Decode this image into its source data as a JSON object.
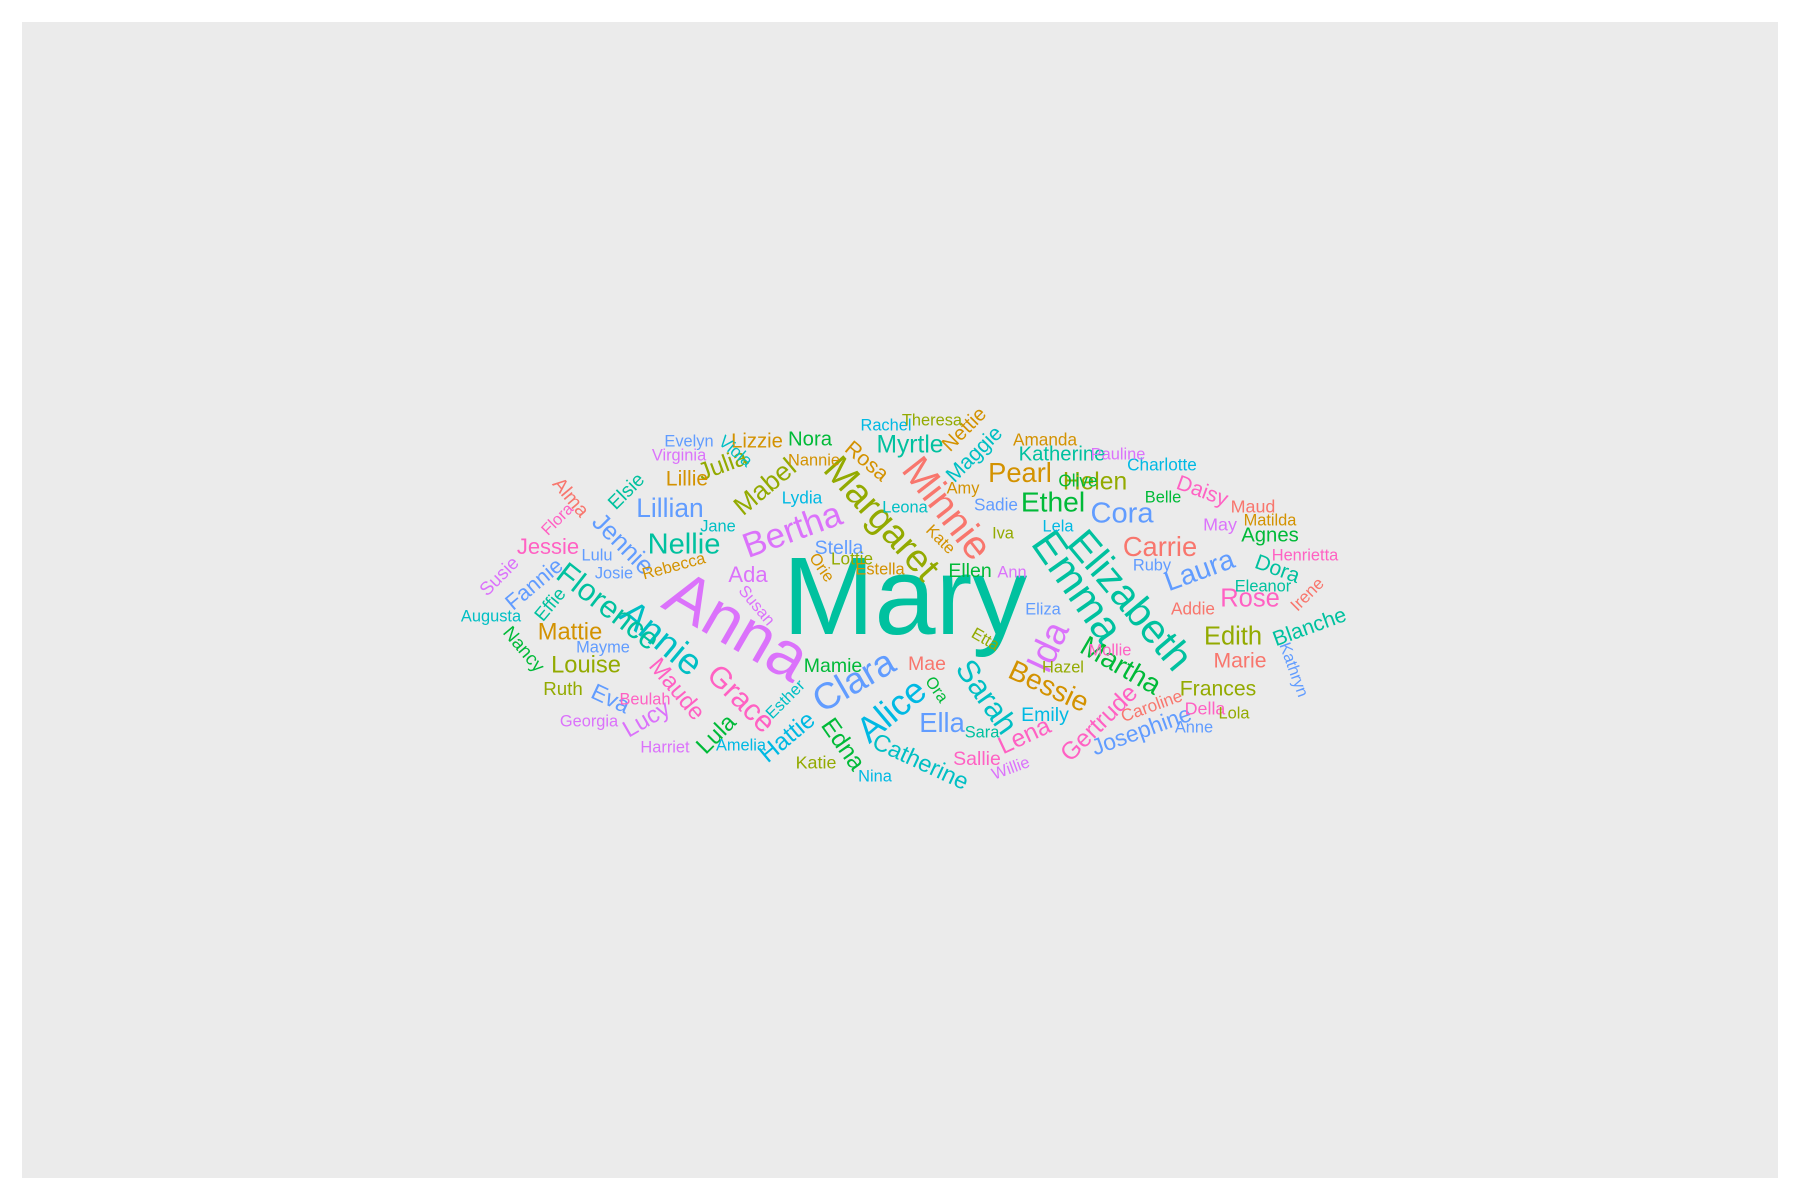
{
  "chart_data": {
    "type": "wordcloud",
    "palette": [
      "#F8766D",
      "#D39200",
      "#93AA00",
      "#00BA38",
      "#00C19F",
      "#00B9E3",
      "#619CFF",
      "#DB72FB",
      "#FF61C3"
    ],
    "words": [
      {
        "text": "Mary",
        "weight": 100,
        "color": "#00C19F",
        "angle": 0
      },
      {
        "text": "Anna",
        "weight": 66,
        "color": "#DB72FB",
        "angle": 30
      },
      {
        "text": "Emma",
        "weight": 46,
        "color": "#00C19F",
        "angle": 55
      },
      {
        "text": "Elizabeth",
        "weight": 44,
        "color": "#00C19F",
        "angle": 50
      },
      {
        "text": "Minnie",
        "weight": 43,
        "color": "#F8766D",
        "angle": 52
      },
      {
        "text": "Margaret",
        "weight": 41,
        "color": "#93AA00",
        "angle": 48
      },
      {
        "text": "Ida",
        "weight": 40,
        "color": "#DB72FB",
        "angle": -65
      },
      {
        "text": "Annie",
        "weight": 40,
        "color": "#00BFC4",
        "angle": 40
      },
      {
        "text": "Clara",
        "weight": 40,
        "color": "#619CFF",
        "angle": -30
      },
      {
        "text": "Alice",
        "weight": 39,
        "color": "#00B9E3",
        "angle": -40
      },
      {
        "text": "Bertha",
        "weight": 38,
        "color": "#DB72FB",
        "angle": -20
      },
      {
        "text": "Sarah",
        "weight": 34,
        "color": "#00BFC4",
        "angle": 55
      },
      {
        "text": "Florence",
        "weight": 34,
        "color": "#00C19F",
        "angle": 38
      },
      {
        "text": "Grace",
        "weight": 33,
        "color": "#FF61C3",
        "angle": 45
      },
      {
        "text": "Nellie",
        "weight": 32,
        "color": "#00C19F",
        "angle": 0
      },
      {
        "text": "Cora",
        "weight": 32,
        "color": "#619CFF",
        "angle": 0
      },
      {
        "text": "Martha",
        "weight": 31,
        "color": "#00BA38",
        "angle": 30
      },
      {
        "text": "Bessie",
        "weight": 31,
        "color": "#D39200",
        "angle": 25
      },
      {
        "text": "Laura",
        "weight": 31,
        "color": "#619CFF",
        "angle": -20
      },
      {
        "text": "Ethel",
        "weight": 31,
        "color": "#00BA38",
        "angle": 0
      },
      {
        "text": "Carrie",
        "weight": 30,
        "color": "#F8766D",
        "angle": 0
      },
      {
        "text": "Ella",
        "weight": 30,
        "color": "#619CFF",
        "angle": 0
      },
      {
        "text": "Pearl",
        "weight": 30,
        "color": "#D39200",
        "angle": 0
      },
      {
        "text": "Lillian",
        "weight": 29,
        "color": "#619CFF",
        "angle": 0
      },
      {
        "text": "Mabel",
        "weight": 29,
        "color": "#93AA00",
        "angle": -40
      },
      {
        "text": "Jennie",
        "weight": 28,
        "color": "#619CFF",
        "angle": 45
      },
      {
        "text": "Edith",
        "weight": 28,
        "color": "#93AA00",
        "angle": 0
      },
      {
        "text": "Rose",
        "weight": 28,
        "color": "#FF61C3",
        "angle": 0
      },
      {
        "text": "Myrtle",
        "weight": 27,
        "color": "#00C19F",
        "angle": 0
      },
      {
        "text": "Helen",
        "weight": 27,
        "color": "#93AA00",
        "angle": 0
      },
      {
        "text": "Julia",
        "weight": 27,
        "color": "#93AA00",
        "angle": -20
      },
      {
        "text": "Gertrude",
        "weight": 27,
        "color": "#FF61C3",
        "angle": -45
      },
      {
        "text": "Hattie",
        "weight": 27,
        "color": "#00B9E3",
        "angle": -40
      },
      {
        "text": "Edna",
        "weight": 27,
        "color": "#00BA38",
        "angle": 55
      },
      {
        "text": "Lena",
        "weight": 27,
        "color": "#FF61C3",
        "angle": -25
      },
      {
        "text": "Maude",
        "weight": 26,
        "color": "#FF61C3",
        "angle": 50
      },
      {
        "text": "Lula",
        "weight": 26,
        "color": "#00BA38",
        "angle": -45
      },
      {
        "text": "Lucy",
        "weight": 26,
        "color": "#DB72FB",
        "angle": -30
      },
      {
        "text": "Catherine",
        "weight": 26,
        "color": "#00BFC4",
        "angle": 25
      },
      {
        "text": "Louise",
        "weight": 26,
        "color": "#93AA00",
        "angle": 0
      },
      {
        "text": "Mattie",
        "weight": 26,
        "color": "#D39200",
        "angle": 0
      },
      {
        "text": "Josephine",
        "weight": 25,
        "color": "#619CFF",
        "angle": -20
      },
      {
        "text": "Eva",
        "weight": 25,
        "color": "#619CFF",
        "angle": 25
      },
      {
        "text": "Fannie",
        "weight": 24,
        "color": "#619CFF",
        "angle": -40
      },
      {
        "text": "Jessie",
        "weight": 24,
        "color": "#FF61C3",
        "angle": 0
      },
      {
        "text": "Ada",
        "weight": 24,
        "color": "#DB72FB",
        "angle": 0
      },
      {
        "text": "Maggie",
        "weight": 23,
        "color": "#00BFC4",
        "angle": -45
      },
      {
        "text": "Rosa",
        "weight": 23,
        "color": "#D39200",
        "angle": 40
      },
      {
        "text": "Lillie",
        "weight": 23,
        "color": "#D39200",
        "angle": 0
      },
      {
        "text": "Daisy",
        "weight": 23,
        "color": "#FF61C3",
        "angle": 20
      },
      {
        "text": "Dora",
        "weight": 23,
        "color": "#00C19F",
        "angle": 20
      },
      {
        "text": "Blanche",
        "weight": 23,
        "color": "#00C19F",
        "angle": -20
      },
      {
        "text": "Frances",
        "weight": 23,
        "color": "#93AA00",
        "angle": 0
      },
      {
        "text": "Marie",
        "weight": 23,
        "color": "#F8766D",
        "angle": 0
      },
      {
        "text": "Agnes",
        "weight": 22,
        "color": "#00BA38",
        "angle": 0
      },
      {
        "text": "Nora",
        "weight": 22,
        "color": "#00BA38",
        "angle": 0
      },
      {
        "text": "Lizzie",
        "weight": 22,
        "color": "#D39200",
        "angle": 0
      },
      {
        "text": "Nettie",
        "weight": 22,
        "color": "#D39200",
        "angle": -45
      },
      {
        "text": "Katherine",
        "weight": 22,
        "color": "#00C19F",
        "angle": 0
      },
      {
        "text": "Sallie",
        "weight": 21,
        "color": "#FF61C3",
        "angle": 0
      },
      {
        "text": "Emily",
        "weight": 21,
        "color": "#00B9E3",
        "angle": 0
      },
      {
        "text": "Stella",
        "weight": 21,
        "color": "#619CFF",
        "angle": 0
      },
      {
        "text": "Mamie",
        "weight": 21,
        "color": "#00BA38",
        "angle": 0
      },
      {
        "text": "Mae",
        "weight": 21,
        "color": "#F8766D",
        "angle": 0
      },
      {
        "text": "Ellen",
        "weight": 21,
        "color": "#00BA38",
        "angle": 0
      },
      {
        "text": "Elsie",
        "weight": 21,
        "color": "#00C19F",
        "angle": -45
      },
      {
        "text": "Alma",
        "weight": 21,
        "color": "#F8766D",
        "angle": 50
      },
      {
        "text": "Susie",
        "weight": 20,
        "color": "#DB72FB",
        "angle": -45
      },
      {
        "text": "Effie",
        "weight": 20,
        "color": "#00C19F",
        "angle": -50
      },
      {
        "text": "Nancy",
        "weight": 20,
        "color": "#00BA38",
        "angle": 50
      },
      {
        "text": "Ruth",
        "weight": 20,
        "color": "#93AA00",
        "angle": 0
      },
      {
        "text": "Katie",
        "weight": 19,
        "color": "#93AA00",
        "angle": 0
      },
      {
        "text": "Della",
        "weight": 19,
        "color": "#FF61C3",
        "angle": 0
      },
      {
        "text": "May",
        "weight": 19,
        "color": "#DB72FB",
        "angle": 0
      },
      {
        "text": "Maud",
        "weight": 19,
        "color": "#F8766D",
        "angle": 0
      },
      {
        "text": "Viola",
        "weight": 18,
        "color": "#00BFC4",
        "angle": 40
      },
      {
        "text": "Sadie",
        "weight": 18,
        "color": "#619CFF",
        "angle": 0
      },
      {
        "text": "Lydia",
        "weight": 18,
        "color": "#00B9E3",
        "angle": 0
      },
      {
        "text": "Lottie",
        "weight": 18,
        "color": "#93AA00",
        "angle": 0
      },
      {
        "text": "Olive",
        "weight": 18,
        "color": "#00BA38",
        "angle": 0
      },
      {
        "text": "Charlotte",
        "weight": 18,
        "color": "#00B9E3",
        "angle": 0
      },
      {
        "text": "Amanda",
        "weight": 18,
        "color": "#D39200",
        "angle": 0
      },
      {
        "text": "Addie",
        "weight": 18,
        "color": "#F8766D",
        "angle": 0
      },
      {
        "text": "Caroline",
        "weight": 18,
        "color": "#F8766D",
        "angle": -20
      },
      {
        "text": "Irene",
        "weight": 18,
        "color": "#F8766D",
        "angle": -45
      },
      {
        "text": "Hazel",
        "weight": 17,
        "color": "#93AA00",
        "angle": 0
      },
      {
        "text": "Etta",
        "weight": 17,
        "color": "#93AA00",
        "angle": 30
      },
      {
        "text": "Mollie",
        "weight": 17,
        "color": "#FF61C3",
        "angle": 0
      },
      {
        "text": "Willie",
        "weight": 17,
        "color": "#DB72FB",
        "angle": -20
      },
      {
        "text": "Georgia",
        "weight": 17,
        "color": "#DB72FB",
        "angle": 0
      },
      {
        "text": "Harriet",
        "weight": 17,
        "color": "#DB72FB",
        "angle": 0
      },
      {
        "text": "Amelia",
        "weight": 17,
        "color": "#00B9E3",
        "angle": 0
      },
      {
        "text": "Esther",
        "weight": 17,
        "color": "#00BFC4",
        "angle": -45
      },
      {
        "text": "Beulah",
        "weight": 17,
        "color": "#FF61C3",
        "angle": 0
      },
      {
        "text": "Lulu",
        "weight": 17,
        "color": "#619CFF",
        "angle": 0
      },
      {
        "text": "Josie",
        "weight": 17,
        "color": "#619CFF",
        "angle": 0
      },
      {
        "text": "Jane",
        "weight": 17,
        "color": "#00BFC4",
        "angle": 0
      },
      {
        "text": "Susan",
        "weight": 17,
        "color": "#DB72FB",
        "angle": 50
      },
      {
        "text": "Rebecca",
        "weight": 17,
        "color": "#D39200",
        "angle": -15
      },
      {
        "text": "Estella",
        "weight": 17,
        "color": "#D39200",
        "angle": 0
      },
      {
        "text": "Nina",
        "weight": 17,
        "color": "#00B9E3",
        "angle": 0
      },
      {
        "text": "Sara",
        "weight": 17,
        "color": "#00C19F",
        "angle": 0
      },
      {
        "text": "Virginia",
        "weight": 17,
        "color": "#DB72FB",
        "angle": 0
      },
      {
        "text": "Evelyn",
        "weight": 17,
        "color": "#619CFF",
        "angle": 0
      },
      {
        "text": "Nannie",
        "weight": 17,
        "color": "#D39200",
        "angle": 0
      },
      {
        "text": "Rachel",
        "weight": 17,
        "color": "#00B9E3",
        "angle": 0
      },
      {
        "text": "Theresa",
        "weight": 17,
        "color": "#93AA00",
        "angle": 0
      },
      {
        "text": "Pauline",
        "weight": 17,
        "color": "#DB72FB",
        "angle": 0
      },
      {
        "text": "Belle",
        "weight": 17,
        "color": "#00BA38",
        "angle": 0
      },
      {
        "text": "Matilda",
        "weight": 17,
        "color": "#D39200",
        "angle": 0
      },
      {
        "text": "Henrietta",
        "weight": 17,
        "color": "#FF61C3",
        "angle": 0
      },
      {
        "text": "Eleanor",
        "weight": 17,
        "color": "#00C19F",
        "angle": 0
      },
      {
        "text": "Kathryn",
        "weight": 17,
        "color": "#619CFF",
        "angle": 70
      },
      {
        "text": "Ruby",
        "weight": 17,
        "color": "#619CFF",
        "angle": 0
      },
      {
        "text": "Leona",
        "weight": 17,
        "color": "#00BFC4",
        "angle": 0
      },
      {
        "text": "Kate",
        "weight": 17,
        "color": "#D39200",
        "angle": 45
      },
      {
        "text": "Iva",
        "weight": 17,
        "color": "#93AA00",
        "angle": 0
      },
      {
        "text": "Ann",
        "weight": 17,
        "color": "#DB72FB",
        "angle": 0
      },
      {
        "text": "Eliza",
        "weight": 17,
        "color": "#619CFF",
        "angle": 0
      },
      {
        "text": "Ora",
        "weight": 17,
        "color": "#00BA38",
        "angle": 55
      },
      {
        "text": "Orie",
        "weight": 17,
        "color": "#D39200",
        "angle": 55
      },
      {
        "text": "Augusta",
        "weight": 17,
        "color": "#00BFC4",
        "angle": 0
      },
      {
        "text": "Anne",
        "weight": 17,
        "color": "#619CFF",
        "angle": 0
      },
      {
        "text": "Amy",
        "weight": 17,
        "color": "#D39200",
        "angle": 0
      },
      {
        "text": "Lola",
        "weight": 17,
        "color": "#93AA00",
        "angle": 0
      },
      {
        "text": "Flora",
        "weight": 17,
        "color": "#FF61C3",
        "angle": -45
      },
      {
        "text": "Lela",
        "weight": 17,
        "color": "#00B9E3",
        "angle": 0
      },
      {
        "text": "Mayme",
        "weight": 17,
        "color": "#619CFF",
        "angle": 0
      }
    ]
  }
}
